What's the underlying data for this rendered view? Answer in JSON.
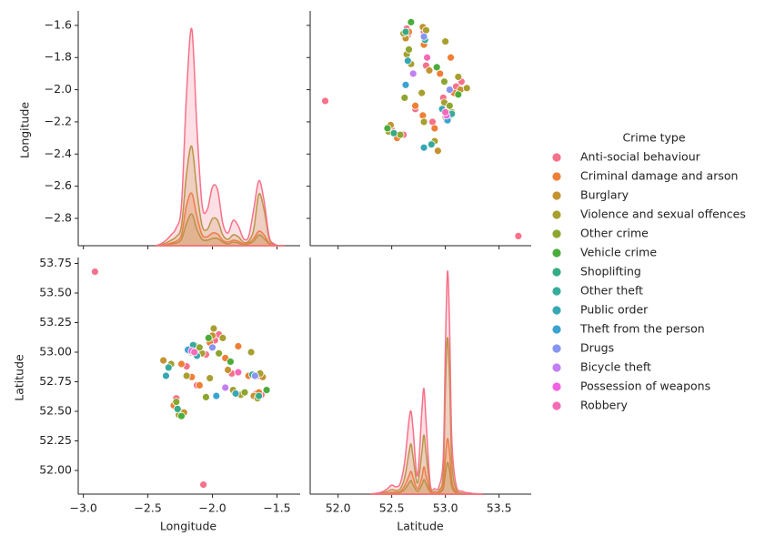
{
  "chart_data": {
    "type": "pairplot",
    "variables": [
      "Longitude",
      "Latitude"
    ],
    "legend_title": "Crime type",
    "longitude": {
      "xlim": [
        -3.04,
        -1.32
      ],
      "xticks": [
        {
          "value": -3.0,
          "label": "−3.0"
        },
        {
          "value": -2.5,
          "label": "−2.5"
        },
        {
          "value": -2.0,
          "label": "−2.0"
        },
        {
          "value": -1.5,
          "label": "−1.5"
        }
      ],
      "ylim": [
        -2.97,
        -1.51
      ],
      "yticks": [
        {
          "value": -1.6,
          "label": "−1.6"
        },
        {
          "value": -1.8,
          "label": "−1.8"
        },
        {
          "value": -2.0,
          "label": "−2.0"
        },
        {
          "value": -2.2,
          "label": "−2.2"
        },
        {
          "value": -2.4,
          "label": "−2.4"
        },
        {
          "value": -2.6,
          "label": "−2.6"
        },
        {
          "value": -2.8,
          "label": "−2.8"
        }
      ]
    },
    "latitude": {
      "xlim": [
        51.74,
        53.8
      ],
      "xticks": [
        {
          "value": 52.0,
          "label": "52.0"
        },
        52.5,
        {
          "value": 53.0,
          "label": "53.0"
        },
        53.5
      ],
      "ylim": [
        51.8,
        53.8
      ],
      "yticks": [
        {
          "value": 52.0,
          "label": "52.00"
        },
        52.25,
        {
          "value": 52.5,
          "label": "52.50"
        },
        52.75,
        {
          "value": 53.0,
          "label": "53.00"
        },
        53.25,
        {
          "value": 53.5,
          "label": "53.50"
        },
        53.75
      ]
    },
    "density_lim": [
      0,
      260
    ],
    "kde_longitude_x": [
      -2.44,
      -2.4,
      -2.36,
      -2.32,
      -2.28,
      -2.24,
      -2.2,
      -2.16,
      -2.12,
      -2.08,
      -2.04,
      -2.0,
      -1.96,
      -1.92,
      -1.88,
      -1.84,
      -1.8,
      -1.76,
      -1.72,
      -1.68,
      -1.64,
      -1.6,
      -1.56,
      -1.52,
      -1.48,
      -1.44
    ],
    "kde_latitude_x": [
      52.3,
      52.4,
      52.46,
      52.5,
      52.54,
      52.58,
      52.62,
      52.66,
      52.68,
      52.7,
      52.74,
      52.78,
      52.8,
      52.82,
      52.86,
      52.9,
      52.94,
      52.98,
      53.0,
      53.02,
      53.04,
      53.06,
      53.1,
      53.16,
      53.24,
      53.35
    ],
    "series": [
      {
        "name": "Anti-social behaviour",
        "color": "#f77189",
        "longitude": [
          -2.07,
          -2.91,
          -2.18,
          -2.15,
          -2.05,
          -1.98,
          -1.66,
          -1.64,
          -2.25,
          -2.28,
          -1.85,
          -1.62,
          -2.2,
          -1.95,
          -2.12
        ],
        "latitude": [
          51.88,
          53.68,
          53.02,
          53.05,
          52.98,
          53.1,
          52.65,
          52.8,
          52.5,
          52.61,
          52.82,
          52.64,
          52.88,
          53.15,
          52.72
        ],
        "kde_longitude": [
          0,
          2,
          6,
          12,
          20,
          45,
          170,
          240,
          130,
          45,
          40,
          65,
          62,
          25,
          14,
          28,
          22,
          8,
          10,
          40,
          72,
          50,
          10,
          2,
          0,
          0
        ],
        "kde_latitude": [
          0,
          2,
          6,
          10,
          8,
          12,
          35,
          80,
          91,
          70,
          20,
          90,
          116,
          80,
          10,
          6,
          8,
          40,
          160,
          245,
          180,
          60,
          10,
          3,
          1,
          0
        ]
      },
      {
        "name": "Criminal damage and arson",
        "color": "#ee7f35",
        "longitude": [
          -2.19,
          -2.16,
          -2.02,
          -1.64,
          -1.72,
          -2.3,
          -1.9,
          -2.1,
          -2.24,
          -1.8
        ],
        "latitude": [
          53.01,
          52.79,
          53.08,
          52.66,
          52.8,
          52.55,
          52.95,
          52.72,
          52.9,
          53.05
        ],
        "kde_longitude": [
          0,
          0,
          1,
          3,
          5,
          12,
          45,
          58,
          32,
          12,
          10,
          14,
          13,
          6,
          4,
          6,
          5,
          2,
          3,
          8,
          16,
          12,
          3,
          0,
          0,
          0
        ],
        "kde_latitude": [
          0,
          0,
          1,
          2,
          2,
          3,
          9,
          20,
          25,
          18,
          6,
          18,
          30,
          20,
          3,
          1,
          2,
          10,
          40,
          61,
          45,
          15,
          2,
          0,
          0,
          0
        ]
      },
      {
        "name": "Burglary",
        "color": "#c49331",
        "longitude": [
          -2.38,
          -2.17,
          -2.0,
          -1.68,
          -2.22,
          -1.88,
          -1.61
        ],
        "latitude": [
          52.93,
          53.03,
          53.14,
          52.63,
          52.49,
          52.85,
          52.79
        ]
      },
      {
        "name": "Violence and sexual offences",
        "color": "#a89f31",
        "longitude": [
          -2.17,
          -2.14,
          -2.08,
          -1.99,
          -1.65,
          -1.63,
          -2.26,
          -2.32,
          -1.84,
          -1.7,
          -2.2,
          -2.02,
          -1.92,
          -1.78
        ],
        "latitude": [
          53.0,
          53.06,
          52.99,
          53.2,
          52.61,
          52.82,
          52.47,
          52.9,
          52.68,
          53.0,
          52.8,
          52.78,
          53.12,
          52.64
        ],
        "kde_longitude": [
          0,
          1,
          3,
          6,
          10,
          22,
          80,
          110,
          60,
          22,
          18,
          30,
          28,
          12,
          7,
          12,
          10,
          4,
          5,
          18,
          57,
          40,
          8,
          1,
          0,
          0
        ],
        "kde_latitude": [
          0,
          1,
          3,
          5,
          4,
          6,
          18,
          45,
          55,
          40,
          12,
          45,
          65,
          45,
          6,
          3,
          4,
          22,
          115,
          172,
          125,
          35,
          5,
          1,
          0,
          0
        ]
      },
      {
        "name": "Other crime",
        "color": "#8da631",
        "longitude": [
          -2.1,
          -1.75,
          -2.28,
          -1.95,
          -2.05
        ],
        "latitude": [
          53.04,
          52.66,
          52.58,
          52.99,
          52.62
        ],
        "kde_longitude": [
          0,
          0,
          1,
          2,
          3,
          7,
          25,
          35,
          18,
          7,
          6,
          8,
          8,
          4,
          2,
          4,
          3,
          1,
          2,
          5,
          12,
          8,
          2,
          0,
          0,
          0
        ],
        "kde_latitude": [
          0,
          0,
          1,
          1,
          1,
          2,
          5,
          12,
          15,
          10,
          3,
          10,
          16,
          11,
          2,
          1,
          1,
          6,
          22,
          35,
          25,
          8,
          1,
          0,
          0,
          0
        ]
      },
      {
        "name": "Vehicle crime",
        "color": "#4aad3b",
        "longitude": [
          -2.03,
          -1.58,
          -2.24,
          -1.86
        ],
        "latitude": [
          53.12,
          52.68,
          52.46,
          52.92
        ]
      },
      {
        "name": "Shoplifting",
        "color": "#35ab85",
        "longitude": [
          -2.18,
          -1.64,
          -2.27
        ],
        "latitude": [
          53.01,
          52.63,
          52.52
        ]
      },
      {
        "name": "Other theft",
        "color": "#36ab9b",
        "longitude": [
          -2.15,
          -1.69,
          -2.34
        ],
        "latitude": [
          53.06,
          52.81,
          52.87
        ]
      },
      {
        "name": "Public order",
        "color": "#38a7b4",
        "longitude": [
          -2.12,
          -1.82,
          -2.36
        ],
        "latitude": [
          52.97,
          52.65,
          52.8
        ]
      },
      {
        "name": "Theft from the person",
        "color": "#3ba3d2",
        "longitude": [
          -2.19,
          -1.97
        ],
        "latitude": [
          53.02,
          52.63
        ]
      },
      {
        "name": "Drugs",
        "color": "#8795f1",
        "longitude": [
          -2.0,
          -1.67
        ],
        "latitude": [
          53.04,
          52.8
        ]
      },
      {
        "name": "Bicycle theft",
        "color": "#c07ff4",
        "longitude": [
          -1.9
        ],
        "latitude": [
          52.7
        ]
      },
      {
        "name": "Possession of weapons",
        "color": "#f161e4",
        "longitude": [
          -2.16
        ],
        "latitude": [
          53.01
        ]
      },
      {
        "name": "Robbery",
        "color": "#f56ab6",
        "longitude": [
          -2.14,
          -1.8
        ],
        "latitude": [
          53.0,
          52.83
        ]
      }
    ]
  }
}
